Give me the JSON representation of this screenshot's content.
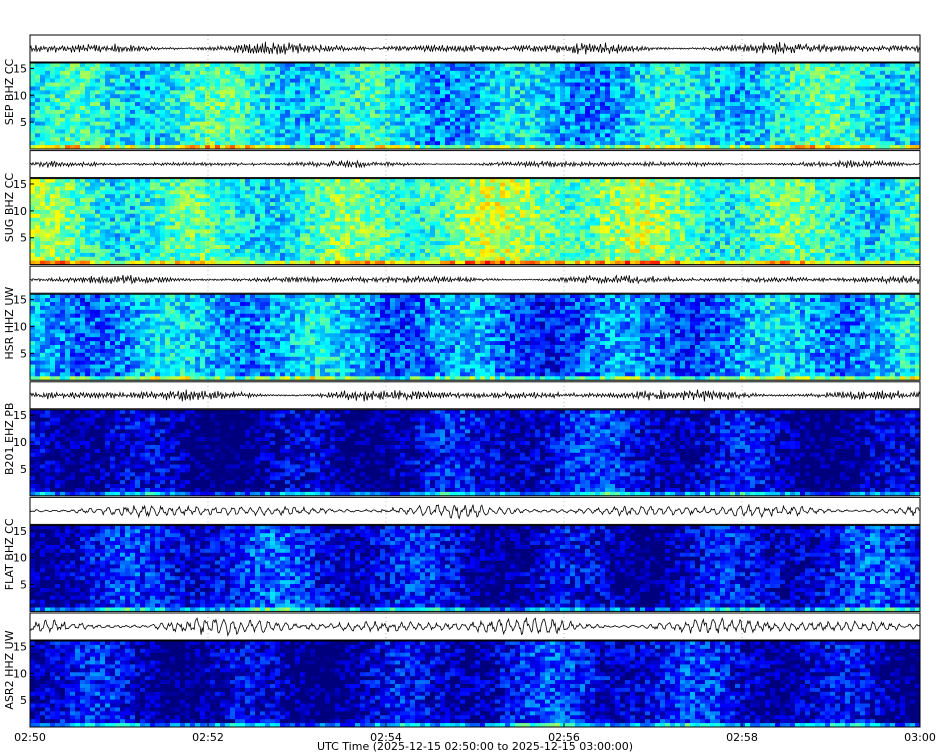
{
  "chart_data": {
    "type": "heatmap",
    "xlabel": "UTC Time (2025-12-15 02:50:00 to 2025-12-15 03:00:00)",
    "x_ticks": [
      "02:50",
      "02:52",
      "02:54",
      "02:56",
      "02:58",
      "03:00"
    ],
    "xlim": [
      "02:50",
      "03:00"
    ],
    "y_ticks": [
      5,
      10,
      15
    ],
    "ylim": [
      0,
      16
    ],
    "grid": true,
    "colormap": [
      "#00007f",
      "#0000ff",
      "#007fff",
      "#00ffff",
      "#7fff7f",
      "#ffff00",
      "#ff7f00",
      "#ff0000"
    ],
    "stations": [
      {
        "label": "SEP BHZ CC",
        "mean_intensity": 0.4,
        "trace_amplitude": 0.55,
        "trace_period": "short"
      },
      {
        "label": "SUG BHZ CC",
        "mean_intensity": 0.52,
        "trace_amplitude": 0.3,
        "trace_period": "short"
      },
      {
        "label": "HSR HHZ UW",
        "mean_intensity": 0.3,
        "trace_amplitude": 0.4,
        "trace_period": "short"
      },
      {
        "label": "B201 EHZ PB",
        "mean_intensity": 0.08,
        "trace_amplitude": 0.55,
        "trace_period": "short"
      },
      {
        "label": "FLAT BHZ CC",
        "mean_intensity": 0.12,
        "trace_amplitude": 0.6,
        "trace_period": "long"
      },
      {
        "label": "ASR2 HHZ UW",
        "mean_intensity": 0.1,
        "trace_amplitude": 0.75,
        "trace_period": "long"
      }
    ]
  }
}
